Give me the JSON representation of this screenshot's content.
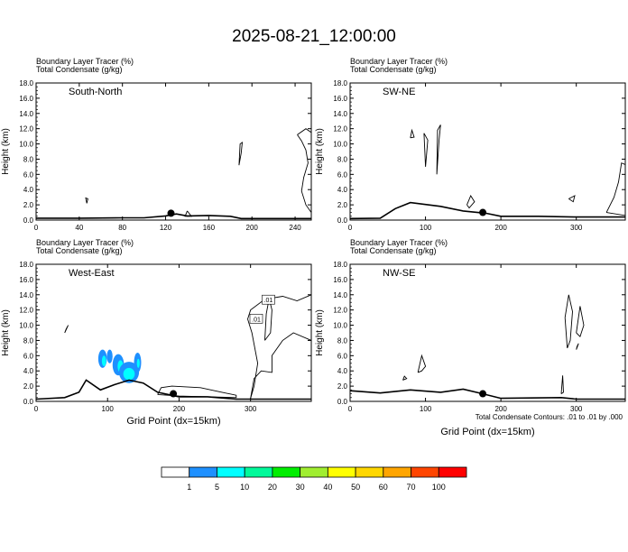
{
  "title": "2025-08-21_12:00:00",
  "footnote": "Total Condensate Contours: .01 to .01 by .000",
  "colorbar": {
    "colors": [
      "#ffffff",
      "#1e90ff",
      "#00ffff",
      "#00fa9a",
      "#00ee00",
      "#a0ee30",
      "#ffff00",
      "#ffd700",
      "#ffa500",
      "#ff4500",
      "#ff0000"
    ],
    "labels": [
      "1",
      "5",
      "10",
      "20",
      "30",
      "40",
      "50",
      "60",
      "70",
      "100"
    ]
  },
  "chart_data": [
    {
      "type": "contour",
      "var1": "Boundary Layer Tracer",
      "var1_unit": "(%)",
      "var2": "Total Condensate",
      "var2_unit": "(g/kg)",
      "panel_label": "South-North",
      "xlabel": "",
      "ylabel": "Height (km)",
      "xlim": [
        0,
        255
      ],
      "ylim": [
        0,
        18
      ],
      "xticks": [
        "0",
        "40",
        "80",
        "120",
        "160",
        "200",
        "240"
      ],
      "yticks": [
        "0.0",
        "2.0",
        "4.0",
        "6.0",
        "8.0",
        "10.0",
        "12.0",
        "14.0",
        "16.0",
        "18.0"
      ],
      "marker": {
        "x": 125,
        "y": 0.9
      },
      "terrain": [
        [
          0,
          0.25
        ],
        [
          40,
          0.25
        ],
        [
          80,
          0.3
        ],
        [
          100,
          0.3
        ],
        [
          120,
          0.55
        ],
        [
          130,
          0.8
        ],
        [
          140,
          0.55
        ],
        [
          160,
          0.6
        ],
        [
          180,
          0.5
        ],
        [
          190,
          0.2
        ],
        [
          255,
          0.2
        ]
      ]
    },
    {
      "type": "contour",
      "var1": "Boundary Layer Tracer",
      "var1_unit": "(%)",
      "var2": "Total Condensate",
      "var2_unit": "(g/kg)",
      "panel_label": "SW-NE",
      "xlabel": "",
      "ylabel": "Height (km)",
      "xlim": [
        0,
        365
      ],
      "ylim": [
        0,
        18
      ],
      "xticks": [
        "0",
        "100",
        "200",
        "300"
      ],
      "yticks": [
        "0.0",
        "2.0",
        "4.0",
        "6.0",
        "8.0",
        "10.0",
        "12.0",
        "14.0",
        "16.0",
        "18.0"
      ],
      "marker": {
        "x": 176,
        "y": 1.0
      },
      "terrain": [
        [
          0,
          0.2
        ],
        [
          40,
          0.25
        ],
        [
          60,
          1.5
        ],
        [
          80,
          2.3
        ],
        [
          120,
          1.8
        ],
        [
          150,
          1.2
        ],
        [
          180,
          0.9
        ],
        [
          200,
          0.5
        ],
        [
          250,
          0.5
        ],
        [
          300,
          0.4
        ],
        [
          365,
          0.4
        ]
      ]
    },
    {
      "type": "contour",
      "var1": "Boundary Layer Tracer",
      "var1_unit": "(%)",
      "var2": "Total Condensate",
      "var2_unit": "(g/kg)",
      "panel_label": "West-East",
      "xlabel": "Grid Point (dx=15km)",
      "ylabel": "Height (km)",
      "xlim": [
        0,
        385
      ],
      "ylim": [
        0,
        18
      ],
      "xticks": [
        "0",
        "100",
        "200",
        "300"
      ],
      "yticks": [
        "0.0",
        "2.0",
        "4.0",
        "6.0",
        "8.0",
        "10.0",
        "12.0",
        "14.0",
        "16.0",
        "18.0"
      ],
      "contour_labels": [
        ".01",
        ".01"
      ],
      "marker": {
        "x": 192,
        "y": 1.0
      },
      "terrain": [
        [
          0,
          0.3
        ],
        [
          40,
          0.5
        ],
        [
          60,
          1.2
        ],
        [
          70,
          2.8
        ],
        [
          90,
          1.5
        ],
        [
          110,
          2.2
        ],
        [
          130,
          2.8
        ],
        [
          150,
          2.4
        ],
        [
          170,
          1.2
        ],
        [
          200,
          0.6
        ],
        [
          240,
          0.6
        ],
        [
          280,
          0.3
        ],
        [
          385,
          0.3
        ]
      ]
    },
    {
      "type": "contour",
      "var1": "Boundary Layer Tracer",
      "var1_unit": "(%)",
      "var2": "Total Condensate",
      "var2_unit": "(g/kg)",
      "panel_label": "NW-SE",
      "xlabel": "Grid Point (dx=15km)",
      "ylabel": "Height (km)",
      "xlim": [
        0,
        365
      ],
      "ylim": [
        0,
        18
      ],
      "xticks": [
        "0",
        "100",
        "200",
        "300"
      ],
      "yticks": [
        "0.0",
        "2.0",
        "4.0",
        "6.0",
        "8.0",
        "10.0",
        "12.0",
        "14.0",
        "16.0",
        "18.0"
      ],
      "marker": {
        "x": 176,
        "y": 1.0
      },
      "terrain": [
        [
          0,
          1.4
        ],
        [
          40,
          1.1
        ],
        [
          80,
          1.5
        ],
        [
          120,
          1.2
        ],
        [
          150,
          1.6
        ],
        [
          176,
          1.0
        ],
        [
          200,
          0.4
        ],
        [
          280,
          0.5
        ],
        [
          300,
          0.3
        ],
        [
          365,
          0.3
        ]
      ]
    }
  ]
}
